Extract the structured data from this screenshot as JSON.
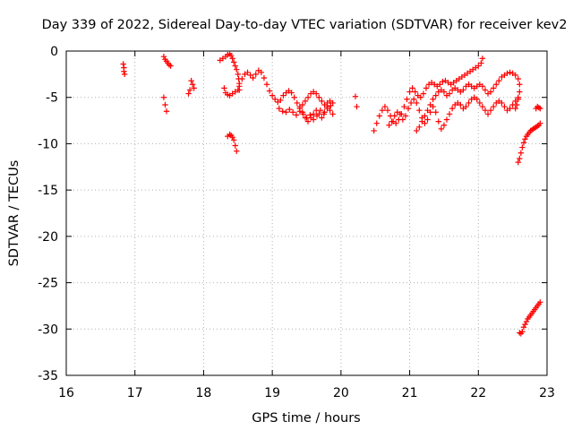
{
  "chart_data": {
    "type": "scatter",
    "title": "Day 339 of 2022, Sidereal Day-to-day VTEC variation (SDTVAR) for receiver kev2",
    "xlabel": "GPS time / hours",
    "ylabel": "SDTVAR / TECUs",
    "xlim": [
      16,
      23
    ],
    "ylim": [
      -35,
      0
    ],
    "xticks": [
      16,
      17,
      18,
      19,
      20,
      21,
      22,
      23
    ],
    "yticks": [
      0,
      -5,
      -10,
      -15,
      -20,
      -25,
      -30,
      -35
    ],
    "grid": true,
    "legend": "none",
    "marker": "+",
    "color": "#ff0000",
    "series": [
      {
        "name": "segment-1",
        "points": [
          [
            16.83,
            -1.4
          ],
          [
            16.84,
            -1.8
          ],
          [
            16.84,
            -2.2
          ],
          [
            16.85,
            -2.5
          ]
        ]
      },
      {
        "name": "segment-2",
        "points": [
          [
            17.42,
            -0.6
          ],
          [
            17.44,
            -0.9
          ],
          [
            17.46,
            -1.1
          ],
          [
            17.48,
            -1.3
          ],
          [
            17.5,
            -1.5
          ],
          [
            17.52,
            -1.6
          ]
        ]
      },
      {
        "name": "segment-3",
        "points": [
          [
            17.42,
            -5.0
          ],
          [
            17.44,
            -5.8
          ],
          [
            17.46,
            -6.5
          ]
        ]
      },
      {
        "name": "segment-4",
        "points": [
          [
            17.78,
            -4.6
          ],
          [
            17.8,
            -4.2
          ],
          [
            17.82,
            -3.2
          ],
          [
            17.84,
            -3.6
          ],
          [
            17.86,
            -4.0
          ]
        ]
      },
      {
        "name": "segment-5",
        "points": [
          [
            18.24,
            -1.0
          ],
          [
            18.28,
            -0.8
          ],
          [
            18.32,
            -0.6
          ],
          [
            18.35,
            -0.4
          ],
          [
            18.38,
            -0.3
          ],
          [
            18.4,
            -0.5
          ],
          [
            18.42,
            -0.8
          ],
          [
            18.44,
            -1.2
          ],
          [
            18.46,
            -1.6
          ],
          [
            18.48,
            -2.0
          ],
          [
            18.5,
            -2.5
          ],
          [
            18.51,
            -3.0
          ],
          [
            18.52,
            -3.5
          ],
          [
            18.52,
            -4.2
          ]
        ]
      },
      {
        "name": "segment-6",
        "points": [
          [
            18.3,
            -4.0
          ],
          [
            18.32,
            -4.5
          ],
          [
            18.35,
            -4.7
          ],
          [
            18.38,
            -4.8
          ],
          [
            18.42,
            -4.6
          ],
          [
            18.46,
            -4.4
          ],
          [
            18.5,
            -4.2
          ]
        ]
      },
      {
        "name": "segment-7",
        "points": [
          [
            18.35,
            -9.2
          ],
          [
            18.38,
            -9.0
          ],
          [
            18.4,
            -9.1
          ],
          [
            18.42,
            -9.3
          ],
          [
            18.44,
            -9.6
          ],
          [
            18.46,
            -10.2
          ],
          [
            18.48,
            -10.8
          ]
        ]
      },
      {
        "name": "segment-8",
        "points": [
          [
            18.52,
            -3.8
          ],
          [
            18.56,
            -3.0
          ],
          [
            18.6,
            -2.5
          ],
          [
            18.64,
            -2.3
          ],
          [
            18.68,
            -2.6
          ],
          [
            18.72,
            -2.9
          ],
          [
            18.76,
            -2.5
          ],
          [
            18.8,
            -2.1
          ],
          [
            18.84,
            -2.3
          ],
          [
            18.88,
            -2.9
          ],
          [
            18.92,
            -3.6
          ],
          [
            18.96,
            -4.3
          ],
          [
            19.0,
            -4.8
          ],
          [
            19.04,
            -5.2
          ],
          [
            19.08,
            -5.5
          ],
          [
            19.12,
            -5.3
          ],
          [
            19.16,
            -4.8
          ],
          [
            19.2,
            -4.5
          ],
          [
            19.24,
            -4.3
          ],
          [
            19.28,
            -4.5
          ],
          [
            19.32,
            -5.0
          ],
          [
            19.36,
            -5.6
          ],
          [
            19.4,
            -6.0
          ],
          [
            19.44,
            -5.8
          ],
          [
            19.48,
            -5.4
          ],
          [
            19.52,
            -5.0
          ],
          [
            19.56,
            -4.6
          ],
          [
            19.6,
            -4.4
          ],
          [
            19.64,
            -4.6
          ],
          [
            19.68,
            -5.0
          ],
          [
            19.72,
            -5.4
          ],
          [
            19.76,
            -5.8
          ],
          [
            19.8,
            -5.6
          ],
          [
            19.84,
            -5.4
          ],
          [
            19.88,
            -5.6
          ]
        ]
      },
      {
        "name": "segment-9",
        "points": [
          [
            19.1,
            -6.2
          ],
          [
            19.15,
            -6.5
          ],
          [
            19.2,
            -6.6
          ],
          [
            19.25,
            -6.3
          ],
          [
            19.3,
            -6.6
          ],
          [
            19.35,
            -6.9
          ],
          [
            19.4,
            -6.5
          ],
          [
            19.45,
            -6.8
          ],
          [
            19.5,
            -7.2
          ],
          [
            19.55,
            -6.9
          ],
          [
            19.6,
            -7.4
          ],
          [
            19.65,
            -7.0
          ],
          [
            19.7,
            -6.4
          ],
          [
            19.75,
            -6.8
          ],
          [
            19.8,
            -6.2
          ],
          [
            19.85,
            -5.9
          ]
        ]
      },
      {
        "name": "segment-10",
        "points": [
          [
            19.4,
            -6.2
          ],
          [
            19.44,
            -6.6
          ],
          [
            19.48,
            -7.2
          ],
          [
            19.52,
            -7.6
          ],
          [
            19.56,
            -7.2
          ],
          [
            19.6,
            -6.8
          ],
          [
            19.64,
            -6.4
          ],
          [
            19.68,
            -6.8
          ],
          [
            19.72,
            -7.2
          ],
          [
            19.76,
            -6.6
          ],
          [
            19.8,
            -6.0
          ],
          [
            19.84,
            -6.4
          ],
          [
            19.88,
            -6.8
          ]
        ]
      },
      {
        "name": "segment-11",
        "points": [
          [
            20.21,
            -4.9
          ],
          [
            20.23,
            -6.0
          ]
        ]
      },
      {
        "name": "segment-12",
        "points": [
          [
            20.48,
            -8.6
          ],
          [
            20.52,
            -7.8
          ],
          [
            20.56,
            -7.0
          ],
          [
            20.6,
            -6.4
          ],
          [
            20.64,
            -6.0
          ],
          [
            20.68,
            -6.4
          ],
          [
            20.72,
            -7.0
          ],
          [
            20.76,
            -7.6
          ],
          [
            20.8,
            -7.8
          ],
          [
            20.84,
            -7.4
          ],
          [
            20.88,
            -6.8
          ],
          [
            20.92,
            -6.0
          ],
          [
            20.96,
            -5.2
          ],
          [
            21.0,
            -4.4
          ],
          [
            21.04,
            -4.0
          ],
          [
            21.08,
            -4.4
          ],
          [
            21.12,
            -4.8
          ],
          [
            21.16,
            -5.0
          ],
          [
            21.2,
            -4.6
          ],
          [
            21.24,
            -4.0
          ],
          [
            21.28,
            -3.6
          ],
          [
            21.32,
            -3.4
          ],
          [
            21.36,
            -3.6
          ],
          [
            21.4,
            -3.8
          ],
          [
            21.44,
            -3.6
          ],
          [
            21.48,
            -3.3
          ],
          [
            21.52,
            -3.2
          ],
          [
            21.56,
            -3.4
          ],
          [
            21.6,
            -3.6
          ],
          [
            21.64,
            -3.4
          ],
          [
            21.68,
            -3.2
          ],
          [
            21.72,
            -3.0
          ],
          [
            21.76,
            -2.8
          ],
          [
            21.8,
            -2.6
          ],
          [
            21.84,
            -2.4
          ],
          [
            21.88,
            -2.2
          ],
          [
            21.92,
            -2.0
          ],
          [
            21.96,
            -1.8
          ],
          [
            22.0,
            -1.6
          ],
          [
            22.04,
            -1.3
          ],
          [
            22.06,
            -0.8
          ]
        ]
      },
      {
        "name": "segment-13",
        "points": [
          [
            20.7,
            -8.0
          ],
          [
            20.74,
            -7.6
          ],
          [
            20.78,
            -7.0
          ],
          [
            20.82,
            -6.6
          ],
          [
            20.86,
            -6.8
          ],
          [
            20.9,
            -7.4
          ],
          [
            20.94,
            -7.0
          ],
          [
            20.98,
            -6.2
          ],
          [
            21.02,
            -5.6
          ],
          [
            21.06,
            -5.2
          ],
          [
            21.1,
            -5.6
          ],
          [
            21.14,
            -6.4
          ],
          [
            21.18,
            -7.2
          ],
          [
            21.22,
            -7.8
          ],
          [
            21.26,
            -7.4
          ],
          [
            21.3,
            -6.6
          ],
          [
            21.34,
            -6.0
          ],
          [
            21.38,
            -6.6
          ],
          [
            21.42,
            -7.6
          ],
          [
            21.46,
            -8.4
          ],
          [
            21.5,
            -8.0
          ],
          [
            21.54,
            -7.4
          ],
          [
            21.58,
            -6.8
          ],
          [
            21.62,
            -6.2
          ],
          [
            21.66,
            -5.8
          ],
          [
            21.7,
            -5.6
          ],
          [
            21.74,
            -5.8
          ],
          [
            21.78,
            -6.2
          ],
          [
            21.82,
            -6.0
          ],
          [
            21.86,
            -5.6
          ],
          [
            21.9,
            -5.2
          ],
          [
            21.94,
            -5.0
          ],
          [
            21.98,
            -5.2
          ],
          [
            22.02,
            -5.6
          ],
          [
            22.06,
            -6.0
          ],
          [
            22.1,
            -6.4
          ],
          [
            22.14,
            -6.8
          ],
          [
            22.18,
            -6.4
          ],
          [
            22.22,
            -6.0
          ],
          [
            22.26,
            -5.6
          ],
          [
            22.3,
            -5.4
          ],
          [
            22.34,
            -5.6
          ],
          [
            22.38,
            -6.0
          ],
          [
            22.42,
            -6.4
          ],
          [
            22.46,
            -6.2
          ],
          [
            22.5,
            -5.8
          ],
          [
            22.54,
            -5.4
          ],
          [
            22.58,
            -5.0
          ]
        ]
      },
      {
        "name": "segment-14",
        "points": [
          [
            21.1,
            -8.6
          ],
          [
            21.14,
            -8.2
          ],
          [
            21.18,
            -7.6
          ],
          [
            21.22,
            -7.0
          ],
          [
            21.26,
            -6.4
          ],
          [
            21.3,
            -5.8
          ],
          [
            21.34,
            -5.2
          ],
          [
            21.38,
            -4.8
          ],
          [
            21.42,
            -4.4
          ],
          [
            21.46,
            -4.2
          ],
          [
            21.5,
            -4.4
          ],
          [
            21.54,
            -4.8
          ],
          [
            21.58,
            -4.6
          ],
          [
            21.62,
            -4.2
          ],
          [
            21.66,
            -4.0
          ],
          [
            21.7,
            -4.2
          ],
          [
            21.74,
            -4.4
          ],
          [
            21.78,
            -4.2
          ],
          [
            21.82,
            -3.8
          ],
          [
            21.86,
            -3.6
          ],
          [
            21.9,
            -3.8
          ],
          [
            21.94,
            -4.0
          ],
          [
            21.98,
            -3.8
          ],
          [
            22.02,
            -3.6
          ],
          [
            22.06,
            -3.8
          ],
          [
            22.1,
            -4.2
          ],
          [
            22.14,
            -4.6
          ],
          [
            22.18,
            -4.4
          ],
          [
            22.22,
            -4.0
          ],
          [
            22.26,
            -3.6
          ],
          [
            22.3,
            -3.2
          ],
          [
            22.34,
            -2.8
          ],
          [
            22.38,
            -2.6
          ],
          [
            22.42,
            -2.4
          ],
          [
            22.46,
            -2.3
          ],
          [
            22.5,
            -2.4
          ],
          [
            22.54,
            -2.6
          ],
          [
            22.58,
            -3.0
          ],
          [
            22.6,
            -3.6
          ],
          [
            22.6,
            -4.4
          ],
          [
            22.58,
            -5.2
          ],
          [
            22.56,
            -5.8
          ],
          [
            22.54,
            -6.2
          ]
        ]
      },
      {
        "name": "segment-15",
        "points": [
          [
            22.58,
            -12.0
          ],
          [
            22.6,
            -11.6
          ],
          [
            22.62,
            -11.0
          ],
          [
            22.64,
            -10.4
          ],
          [
            22.66,
            -9.9
          ],
          [
            22.68,
            -9.5
          ],
          [
            22.7,
            -9.2
          ],
          [
            22.72,
            -9.0
          ],
          [
            22.74,
            -8.8
          ],
          [
            22.76,
            -8.6
          ],
          [
            22.78,
            -8.5
          ],
          [
            22.8,
            -8.4
          ],
          [
            22.82,
            -8.3
          ],
          [
            22.84,
            -8.2
          ],
          [
            22.86,
            -8.1
          ],
          [
            22.88,
            -8.0
          ],
          [
            22.9,
            -7.8
          ]
        ]
      },
      {
        "name": "segment-16",
        "points": [
          [
            22.84,
            -6.2
          ],
          [
            22.86,
            -6.0
          ],
          [
            22.88,
            -6.1
          ],
          [
            22.9,
            -6.2
          ]
        ]
      },
      {
        "name": "segment-17",
        "points": [
          [
            22.6,
            -30.4
          ],
          [
            22.62,
            -30.5
          ],
          [
            22.64,
            -30.3
          ],
          [
            22.66,
            -29.8
          ],
          [
            22.68,
            -29.5
          ],
          [
            22.7,
            -29.2
          ],
          [
            22.72,
            -28.9
          ],
          [
            22.74,
            -28.7
          ],
          [
            22.76,
            -28.5
          ],
          [
            22.78,
            -28.3
          ],
          [
            22.8,
            -28.1
          ],
          [
            22.82,
            -27.9
          ],
          [
            22.84,
            -27.7
          ],
          [
            22.86,
            -27.5
          ],
          [
            22.88,
            -27.3
          ],
          [
            22.9,
            -27.1
          ]
        ]
      }
    ]
  }
}
